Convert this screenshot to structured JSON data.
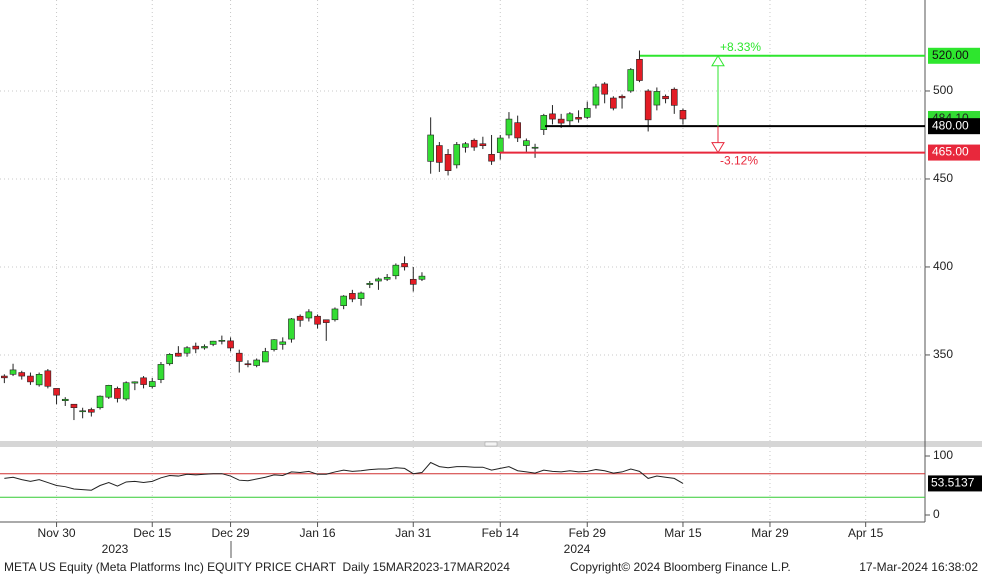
{
  "chart_data": [
    {
      "type": "candlestick",
      "x": [
        0,
        1,
        2,
        3,
        4,
        5,
        6,
        7,
        8,
        9,
        10,
        11,
        12,
        13,
        14,
        15,
        16,
        17,
        18,
        19,
        20,
        21,
        22,
        23,
        24,
        25,
        26,
        27,
        28,
        29,
        30,
        31,
        32,
        33,
        34,
        35,
        36,
        37,
        38,
        39,
        40,
        41,
        42,
        43,
        44,
        45,
        46,
        47,
        48,
        49,
        50,
        51,
        52,
        53,
        54,
        55,
        56,
        57,
        58,
        59,
        60,
        61,
        62,
        63,
        64,
        65,
        66,
        67,
        68,
        69,
        70,
        71,
        72,
        73,
        74,
        75,
        76,
        77,
        78
      ],
      "xlim": [
        -0.5,
        105.82
      ],
      "xticks": [
        {
          "value": 6,
          "label": "Nov 30"
        },
        {
          "value": 17,
          "label": "Dec 15"
        },
        {
          "value": 26,
          "label": "Dec 29"
        },
        {
          "value": 36,
          "label": "Jan 16"
        },
        {
          "value": 47,
          "label": "Jan 31"
        },
        {
          "value": 57,
          "label": "Feb 14"
        },
        {
          "value": 67,
          "label": "Feb 29"
        },
        {
          "value": 78,
          "label": "Mar 15"
        },
        {
          "value": 88,
          "label": "Mar 29"
        },
        {
          "value": 99,
          "label": "Apr 15"
        }
      ],
      "years": [
        "2023",
        "2024"
      ],
      "ylim": [
        301.1,
        551.7
      ],
      "yticks": [
        350,
        400,
        450,
        500
      ],
      "grid": true,
      "up_color": "#33dd33",
      "down_color": "#e31c25",
      "series": [
        {
          "open": [
            338,
            339,
            340,
            338,
            333,
            341,
            331,
            324,
            322,
            318,
            319,
            320,
            326,
            331,
            325,
            334,
            337,
            332,
            336,
            345,
            351,
            351,
            355,
            354,
            356,
            358,
            358,
            351,
            345,
            344,
            346,
            353,
            356,
            359,
            372,
            371,
            372,
            370,
            370,
            378,
            385,
            382,
            390,
            392,
            393,
            395,
            402,
            393,
            393,
            460,
            469,
            464,
            458,
            468,
            472,
            470,
            464,
            465,
            475,
            482,
            469,
            468,
            478,
            487,
            484,
            483,
            485,
            485,
            492,
            504,
            496,
            497,
            500,
            518,
            500,
            492,
            497,
            501,
            489
          ],
          "high": [
            339,
            345,
            341,
            340,
            340,
            342,
            331,
            326,
            322,
            320,
            320,
            327,
            333,
            332,
            335,
            335,
            338,
            337,
            346,
            351,
            355,
            355,
            357,
            356,
            358,
            361,
            360,
            353,
            347,
            348,
            354,
            359,
            360,
            371,
            373,
            376,
            373,
            370,
            377,
            384,
            387,
            386,
            392,
            394,
            396,
            402,
            406,
            400,
            397,
            485,
            471,
            467,
            471,
            471,
            473,
            474,
            475,
            475,
            488,
            486,
            473,
            470,
            487,
            492,
            487,
            488,
            489,
            494,
            504,
            505,
            497,
            498,
            513,
            523,
            501,
            502,
            498,
            502,
            490
          ],
          "low": [
            334,
            338,
            336,
            333,
            332,
            331,
            322,
            321,
            313,
            314,
            315,
            319,
            325,
            323,
            324,
            330,
            331,
            331,
            334,
            344,
            349,
            349,
            351,
            353,
            355,
            356,
            352,
            340,
            343,
            343,
            346,
            352,
            353,
            357,
            366,
            369,
            365,
            358,
            369,
            376,
            380,
            378,
            388,
            387,
            392,
            393,
            398,
            386,
            392,
            453,
            454,
            452,
            456,
            465,
            466,
            467,
            458,
            461,
            473,
            471,
            465,
            462,
            475,
            481,
            479,
            480,
            482,
            484,
            490,
            493,
            489,
            490,
            499,
            505,
            477,
            489,
            493,
            487,
            481
          ],
          "close": [
            337,
            341.5,
            338,
            334.7,
            339,
            332.2,
            327.15,
            324.82,
            320.02,
            318.29,
            317.45,
            326.59,
            332.75,
            325.28,
            334.22,
            334.73,
            333.17,
            334.92,
            344.62,
            350.36,
            349.28,
            354.09,
            353.39,
            354.83,
            357.83,
            358.32,
            353.96,
            346.29,
            344.47,
            347.12,
            351.95,
            358.66,
            357.43,
            370.47,
            369.67,
            374.49,
            367.46,
            368.37,
            376.13,
            383.45,
            381.78,
            385.2,
            390.7,
            393.18,
            394.14,
            401.02,
            400.06,
            390.14,
            394.78,
            474.99,
            459.41,
            454.72,
            469.59,
            470,
            468.11,
            468.9,
            460.12,
            473.28,
            484.03,
            473.32,
            471.75,
            468.03,
            486.13,
            484.03,
            481.74,
            487.05,
            484.02,
            490.13,
            502.3,
            498.19,
            490.22,
            496.09,
            512.19,
            505.95,
            483.59,
            499.75,
            495.57,
            491.83,
            484.1
          ]
        }
      ],
      "last_price": {
        "value": 484.1,
        "label": "484.10",
        "color": "#33dd33"
      },
      "levels": [
        {
          "value": 520,
          "label": "520.00",
          "color": "#2ee62e",
          "text_color": "#111111",
          "change": "+8.33%"
        },
        {
          "value": 480,
          "label": "480.00",
          "color": "#000000",
          "text_color": "#ffffff"
        },
        {
          "value": 465,
          "label": "465.00",
          "color": "#e8283c",
          "text_color": "#ffffff",
          "change": "-3.12%"
        }
      ]
    },
    {
      "type": "line",
      "values": [
        62,
        64,
        60,
        57,
        60,
        55,
        50,
        48,
        44,
        43,
        42,
        50,
        55,
        49,
        56,
        57,
        55,
        57,
        63,
        67,
        66,
        69,
        68,
        69,
        70,
        70,
        66,
        59,
        58,
        61,
        64,
        68,
        67,
        73,
        72,
        74,
        69,
        69,
        73,
        76,
        74,
        75,
        77,
        78,
        78,
        80,
        79,
        70,
        72,
        89,
        82,
        80,
        82,
        82,
        81,
        81,
        76,
        79,
        82,
        75,
        73,
        71,
        76,
        74,
        73,
        75,
        73,
        74,
        77,
        75,
        71,
        73,
        78,
        74,
        62,
        66,
        64,
        62,
        53.5137
      ],
      "color": "#222222",
      "ylim": [
        -11.86,
        115.25
      ],
      "yticks": [
        0,
        100
      ],
      "levels": [
        {
          "value": 70,
          "color": "#d03030"
        },
        {
          "value": 30,
          "color": "#33cc33"
        }
      ],
      "last_label": "53.5137"
    }
  ],
  "footer": {
    "security": "META US Equity (Meta Platforms Inc) EQUITY PRICE CHART  Daily 15MAR2023-17MAR2024",
    "copyright": "Copyright© 2024 Bloomberg Finance L.P.",
    "timestamp": "17-Mar-2024 16:38:02"
  }
}
